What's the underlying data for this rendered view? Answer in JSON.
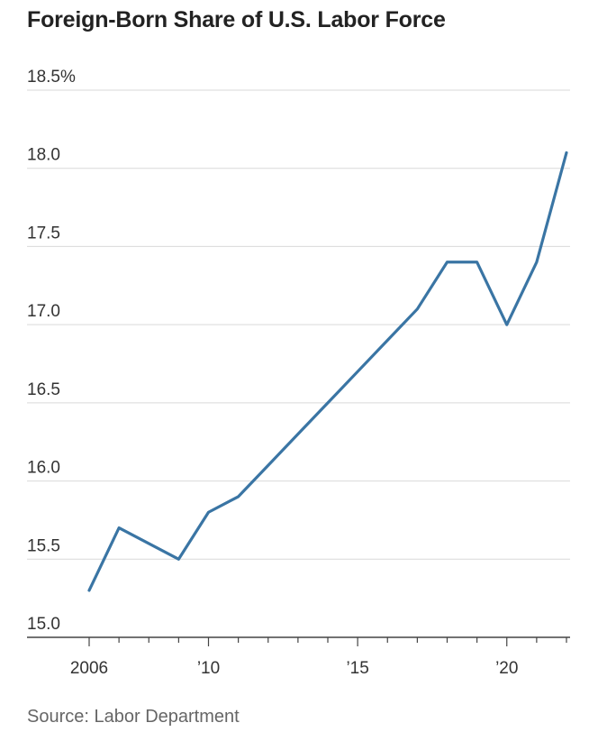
{
  "chart_data": {
    "type": "line",
    "title": "Foreign-Born Share of U.S. Labor Force",
    "source": "Source: Labor Department",
    "xlabel": "",
    "ylabel": "",
    "x": [
      2006,
      2007,
      2008,
      2009,
      2010,
      2011,
      2012,
      2013,
      2014,
      2015,
      2016,
      2017,
      2018,
      2019,
      2020,
      2021,
      2022
    ],
    "series": [
      {
        "values": [
          15.3,
          15.7,
          15.6,
          15.5,
          15.8,
          15.9,
          16.1,
          16.3,
          16.5,
          16.7,
          16.9,
          17.1,
          17.4,
          17.4,
          17.0,
          17.4,
          18.1
        ],
        "color": "#3a75a4"
      }
    ],
    "xlim": [
      2006,
      2022
    ],
    "ylim": [
      15.0,
      18.5
    ],
    "y_ticks": [
      {
        "value": 18.5,
        "label": "18.5%"
      },
      {
        "value": 18.0,
        "label": "18.0"
      },
      {
        "value": 17.5,
        "label": "17.5"
      },
      {
        "value": 17.0,
        "label": "17.0"
      },
      {
        "value": 16.5,
        "label": "16.5"
      },
      {
        "value": 16.0,
        "label": "16.0"
      },
      {
        "value": 15.5,
        "label": "15.5"
      },
      {
        "value": 15.0,
        "label": "15.0"
      }
    ],
    "x_ticks": [
      {
        "value": 2006,
        "label": "2006"
      },
      {
        "value": 2010,
        "label": "’10"
      },
      {
        "value": 2015,
        "label": "’15"
      },
      {
        "value": 2020,
        "label": "’20"
      }
    ],
    "grid": true,
    "legend": "none"
  }
}
